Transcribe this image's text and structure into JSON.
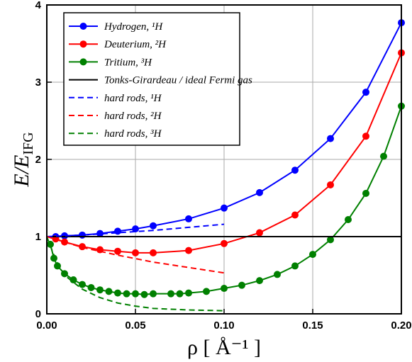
{
  "chart_data": {
    "type": "line",
    "x_label": "ρ [ Å⁻¹ ]",
    "y_label": [
      "E/E",
      "IFG"
    ],
    "xlim": [
      0,
      0.2
    ],
    "ylim": [
      0,
      4
    ],
    "xticks": [
      {
        "value": 0,
        "label": "0.00"
      },
      {
        "value": 0.05,
        "label": "0.05"
      },
      {
        "value": 0.1,
        "label": "0.10"
      },
      {
        "value": 0.15,
        "label": "0.15"
      },
      {
        "value": 0.2,
        "label": "0.20"
      }
    ],
    "yticks": [
      0,
      1,
      2,
      3,
      4
    ],
    "grid": true,
    "legend": "upper left",
    "series": [
      {
        "name": "Hydrogen, ¹H",
        "color": "#0000ff",
        "markers": true,
        "dashed": false,
        "x": [
          0.005,
          0.01,
          0.02,
          0.03,
          0.04,
          0.05,
          0.06,
          0.08,
          0.1,
          0.12,
          0.14,
          0.16,
          0.18,
          0.2
        ],
        "values": [
          1.0,
          1.01,
          1.02,
          1.04,
          1.07,
          1.1,
          1.14,
          1.23,
          1.37,
          1.57,
          1.86,
          2.27,
          2.87,
          3.77
        ]
      },
      {
        "name": "Deuterium, ²H",
        "color": "#ff0000",
        "markers": true,
        "dashed": false,
        "x": [
          0.005,
          0.01,
          0.02,
          0.03,
          0.04,
          0.05,
          0.06,
          0.08,
          0.1,
          0.12,
          0.14,
          0.16,
          0.18,
          0.2
        ],
        "values": [
          0.97,
          0.93,
          0.87,
          0.83,
          0.81,
          0.79,
          0.79,
          0.82,
          0.91,
          1.05,
          1.28,
          1.67,
          2.3,
          3.38
        ]
      },
      {
        "name": "Tritium, ³H",
        "color": "#008000",
        "markers": true,
        "dashed": false,
        "x": [
          0.002,
          0.004,
          0.006,
          0.01,
          0.015,
          0.02,
          0.025,
          0.03,
          0.035,
          0.04,
          0.045,
          0.05,
          0.055,
          0.06,
          0.07,
          0.075,
          0.08,
          0.09,
          0.1,
          0.11,
          0.12,
          0.13,
          0.14,
          0.15,
          0.16,
          0.17,
          0.18,
          0.19,
          0.2
        ],
        "values": [
          0.9,
          0.72,
          0.62,
          0.52,
          0.44,
          0.38,
          0.34,
          0.31,
          0.29,
          0.27,
          0.26,
          0.26,
          0.25,
          0.26,
          0.26,
          0.26,
          0.27,
          0.29,
          0.33,
          0.37,
          0.43,
          0.51,
          0.62,
          0.77,
          0.96,
          1.22,
          1.56,
          2.04,
          2.69
        ]
      },
      {
        "name": "Tonks-Girardeau / ideal Fermi gas",
        "color": "#000000",
        "markers": false,
        "dashed": false,
        "x": [
          0,
          0.2
        ],
        "values": [
          1,
          1
        ]
      },
      {
        "name": "hard rods, ¹H",
        "color": "#0000ff",
        "markers": false,
        "dashed": true,
        "x": [
          0,
          0.02,
          0.04,
          0.06,
          0.08,
          0.1
        ],
        "values": [
          1.0,
          1.02,
          1.05,
          1.08,
          1.12,
          1.16
        ]
      },
      {
        "name": "hard rods, ²H",
        "color": "#ff0000",
        "markers": false,
        "dashed": true,
        "x": [
          0,
          0.01,
          0.02,
          0.04,
          0.06,
          0.08,
          0.1
        ],
        "values": [
          1.0,
          0.93,
          0.86,
          0.76,
          0.67,
          0.6,
          0.53
        ]
      },
      {
        "name": "hard rods, ³H",
        "color": "#008000",
        "markers": false,
        "dashed": true,
        "x": [
          0,
          0.005,
          0.01,
          0.02,
          0.03,
          0.04,
          0.05,
          0.06,
          0.08,
          0.1
        ],
        "values": [
          1.0,
          0.7,
          0.5,
          0.32,
          0.21,
          0.14,
          0.1,
          0.07,
          0.05,
          0.04
        ]
      }
    ]
  }
}
